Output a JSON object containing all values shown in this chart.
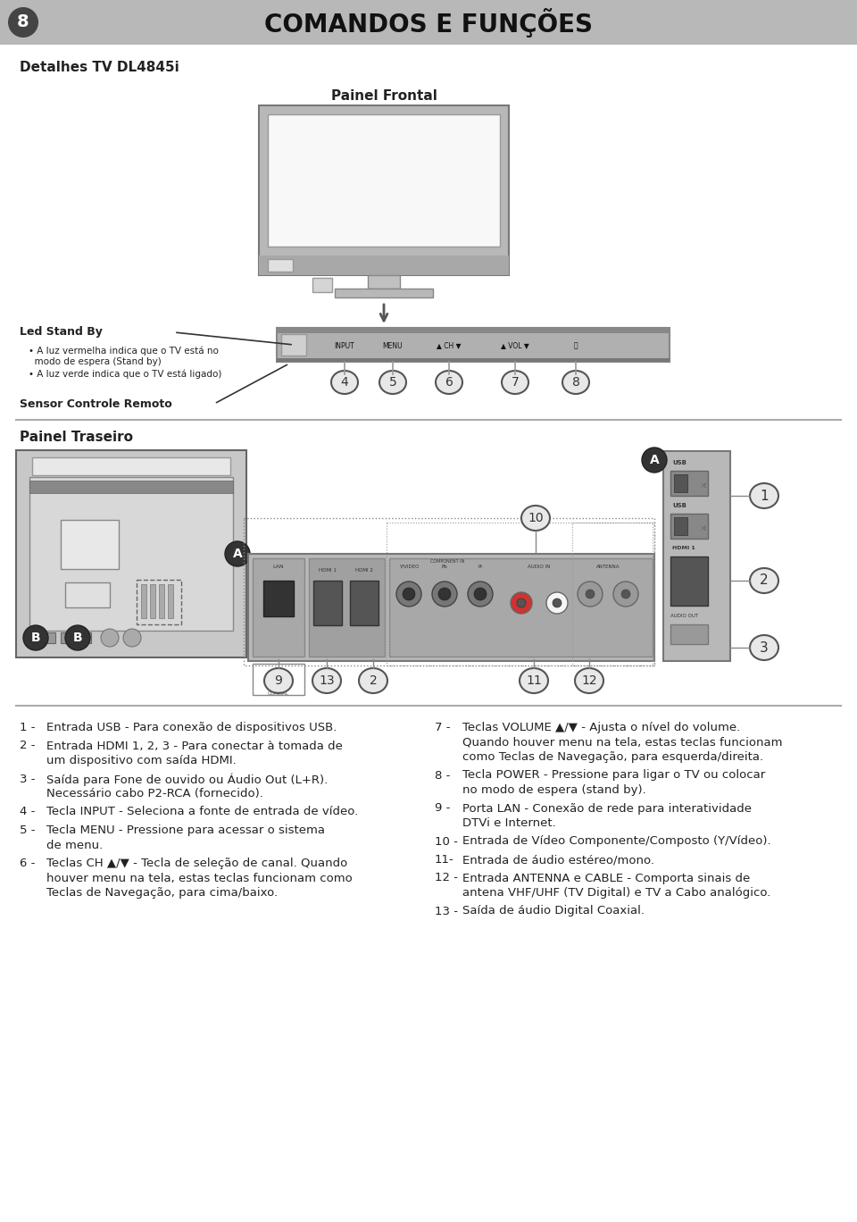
{
  "page_number": "8",
  "page_title": "COMANDOS E FUNÇÕES",
  "subtitle": "Detalhes TV DL4845i",
  "section1": "Painel Frontal",
  "section2": "Painel Traseiro",
  "bg_color": "#ffffff",
  "header_bg": "#b8b8b8",
  "body_text_color": "#222222",
  "tv_body_color": "#c8c8c8",
  "tv_screen_color": "#f5f5f5",
  "tv_border_color": "#888888",
  "circle_color": "#e8e8e8",
  "circle_border": "#555555",
  "led_stand_by": "Led Stand By",
  "sensor_controle": "Sensor Controle Remoto",
  "desc_left": [
    [
      "1 -",
      "Entrada USB - Para conexão de dispositivos USB."
    ],
    [
      "2 -",
      "Entrada HDMI 1, 2, 3 - Para conectar à tomada de",
      "um dispositivo com saída HDMI."
    ],
    [
      "3 -",
      "Saída para Fone de ouvido ou Áudio Out (L+R).",
      "Necessário cabo P2-RCA (fornecido)."
    ],
    [
      "4 -",
      "Tecla INPUT - Seleciona a fonte de entrada de vídeo."
    ],
    [
      "5 -",
      "Tecla MENU - Pressione para acessar o sistema",
      "de menu."
    ],
    [
      "6 -",
      "Teclas CH ▲/▼ - Tecla de seleção de canal. Quando",
      "houver menu na tela, estas teclas funcionam como",
      "Teclas de Navegação, para cima/baixo."
    ]
  ],
  "desc_right": [
    [
      "7 -",
      "Teclas VOLUME ▲/▼ - Ajusta o nível do volume.",
      "Quando houver menu na tela, estas teclas funcionam",
      "como Teclas de Navegação, para esquerda/direita."
    ],
    [
      "8 -",
      "Tecla POWER - Pressione para ligar o TV ou colocar",
      "no modo de espera (stand by)."
    ],
    [
      "9 -",
      "Porta LAN - Conexão de rede para interatividade",
      "DTVi e Internet."
    ],
    [
      "10 -",
      "Entrada de Vídeo Componente/Composto (Y/Vídeo)."
    ],
    [
      "11-",
      "Entrada de áudio estéreo/mono."
    ],
    [
      "12 -",
      "Entrada ANTENNA e CABLE - Comporta sinais de",
      "antena VHF/UHF (TV Digital) e TV a Cabo analógico."
    ],
    [
      "13 -",
      "Saída de áudio Digital Coaxial."
    ]
  ]
}
